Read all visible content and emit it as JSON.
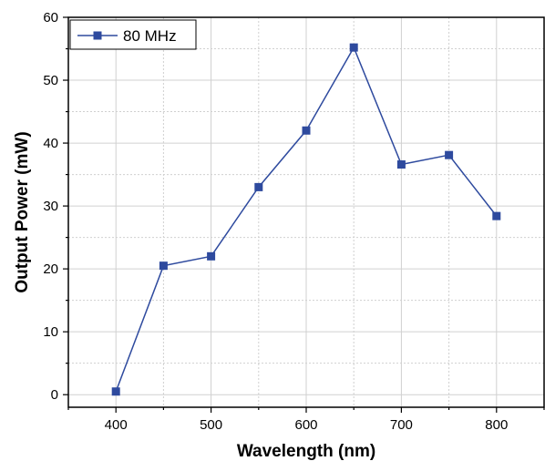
{
  "chart_data": {
    "type": "line",
    "title": "",
    "xlabel": "Wavelength (nm)",
    "ylabel": "Output Power (mW)",
    "xlim": [
      350,
      850
    ],
    "ylim": [
      -2,
      60
    ],
    "x_ticks": [
      400,
      500,
      600,
      700,
      800
    ],
    "y_ticks": [
      0,
      10,
      20,
      30,
      40,
      50,
      60
    ],
    "grid": true,
    "legend": "top-left",
    "series": [
      {
        "name": "80 MHz",
        "color": "#2e4a9e",
        "marker": "square",
        "x": [
          400,
          450,
          500,
          550,
          600,
          650,
          700,
          750,
          800
        ],
        "y": [
          0.5,
          20.5,
          22,
          33,
          42,
          55.2,
          36.6,
          38.1,
          28.4
        ]
      }
    ]
  }
}
